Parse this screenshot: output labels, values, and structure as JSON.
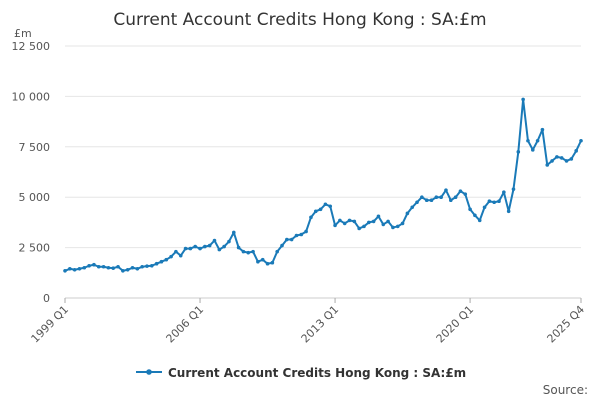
{
  "chart_data": {
    "type": "line",
    "title": "Current Account Credits Hong Kong : SA:£m",
    "unit_label": "£m",
    "xlabel": "",
    "ylabel": "",
    "ylim": [
      0,
      12500
    ],
    "y_ticks": [
      0,
      2500,
      5000,
      7500,
      10000,
      12500
    ],
    "y_tick_labels": [
      "0",
      "2 500",
      "5 000",
      "7 500",
      "10 000",
      "12 500"
    ],
    "x_ticks": [
      {
        "label": "1999 Q1",
        "index": 0
      },
      {
        "label": "2006 Q1",
        "index": 28
      },
      {
        "label": "2013 Q1",
        "index": 56
      },
      {
        "label": "2020 Q1",
        "index": 84
      },
      {
        "label": "2025 Q4",
        "index": 107
      }
    ],
    "grid": "horizontal",
    "legend_position": "bottom",
    "color": "#1a7ab8",
    "source_label": "Source:",
    "series": [
      {
        "name": "Current Account Credits Hong Kong : SA:£m",
        "values": [
          1350,
          1450,
          1400,
          1450,
          1500,
          1600,
          1650,
          1550,
          1550,
          1500,
          1480,
          1550,
          1350,
          1400,
          1500,
          1450,
          1550,
          1580,
          1600,
          1700,
          1800,
          1900,
          2050,
          2300,
          2100,
          2450,
          2450,
          2550,
          2450,
          2550,
          2600,
          2850,
          2400,
          2550,
          2800,
          3250,
          2500,
          2300,
          2250,
          2300,
          1800,
          1900,
          1700,
          1750,
          2300,
          2600,
          2900,
          2900,
          3100,
          3150,
          3300,
          4000,
          4300,
          4400,
          4650,
          4550,
          3600,
          3850,
          3700,
          3850,
          3800,
          3450,
          3550,
          3750,
          3800,
          4050,
          3650,
          3800,
          3500,
          3550,
          3700,
          4200,
          4500,
          4750,
          5000,
          4850,
          4850,
          5000,
          5000,
          5350,
          4850,
          5000,
          5300,
          5150,
          4400,
          4100,
          3850,
          4500,
          4800,
          4750,
          4800,
          5250,
          4300,
          5400,
          7250,
          9850,
          7800,
          7350,
          7800,
          8350,
          6600,
          6800,
          7000,
          6950,
          6800,
          6900,
          7300,
          7800
        ]
      }
    ]
  }
}
